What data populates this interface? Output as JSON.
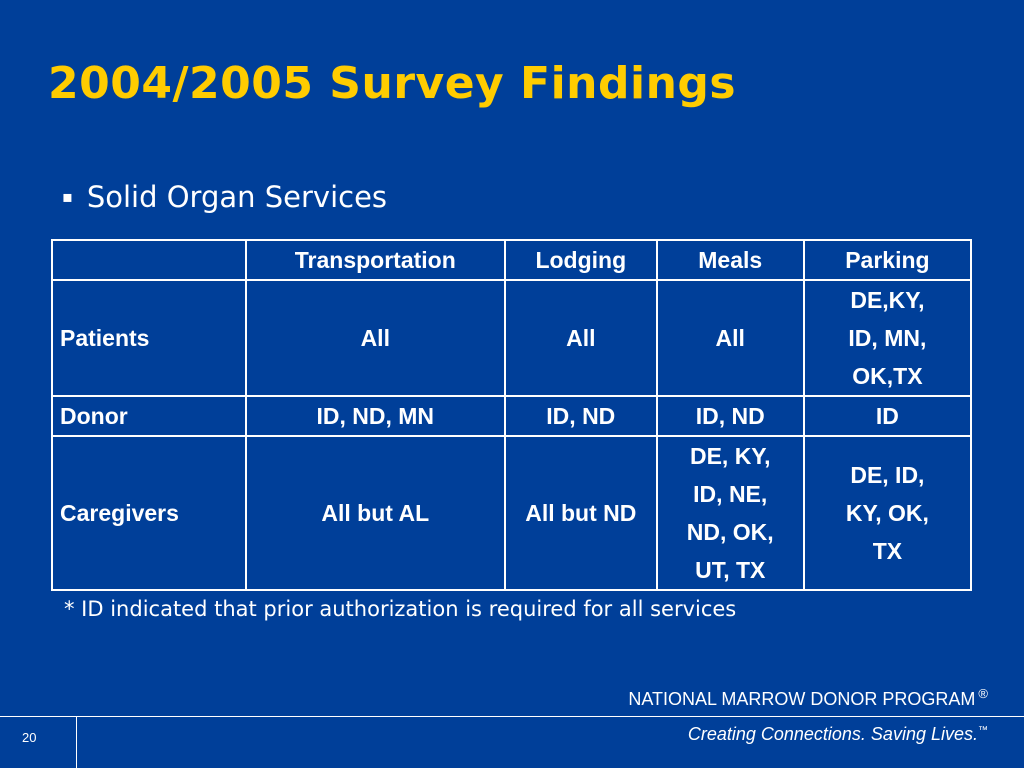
{
  "slide": {
    "title": "2004/2005 Survey Findings",
    "bullet": "Solid Organ Services",
    "bullet_marker": "▪",
    "footnote": "* ID indicated that prior authorization is required for all services"
  },
  "table": {
    "headers": [
      "",
      "Transportation",
      "Lodging",
      "Meals",
      "Parking"
    ],
    "rows": [
      {
        "label": "Patients",
        "cells": [
          [
            "All"
          ],
          [
            "All"
          ],
          [
            "All"
          ],
          [
            "DE,KY,",
            "ID, MN,",
            "OK,TX"
          ]
        ]
      },
      {
        "label": "Donor",
        "cells": [
          [
            "ID, ND, MN"
          ],
          [
            "ID, ND"
          ],
          [
            "ID, ND"
          ],
          [
            "ID"
          ]
        ]
      },
      {
        "label": "Caregivers",
        "cells": [
          [
            "All but AL"
          ],
          [
            "All but ND"
          ],
          [
            "DE, KY,",
            "ID, NE,",
            "ND, OK,",
            "UT, TX"
          ],
          [
            "DE, ID,",
            "KY, OK,",
            "TX"
          ]
        ]
      }
    ]
  },
  "footer": {
    "organization": "NATIONAL MARROW DONOR PROGRAM",
    "registered_mark": "®",
    "tagline": "Creating Connections. Saving Lives.",
    "trademark": "™",
    "page_number": "20"
  },
  "colors": {
    "background": "#003f99",
    "title": "#ffcc00",
    "text": "#ffffff"
  }
}
